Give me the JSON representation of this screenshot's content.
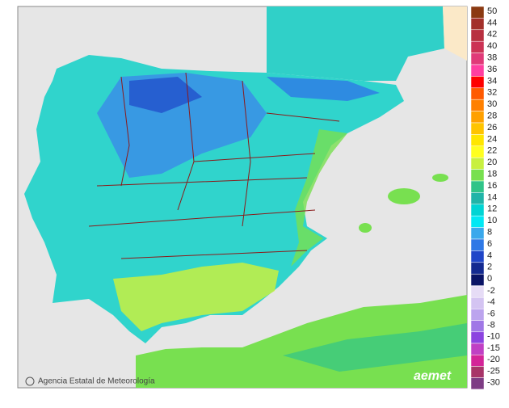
{
  "map": {
    "credit": "Agencia Estatal de Meteorología",
    "logo": "aemet"
  },
  "legend": {
    "positive": [
      {
        "label": "50",
        "color": "#8b3a12"
      },
      {
        "label": "44",
        "color": "#a3302a"
      },
      {
        "label": "42",
        "color": "#b83040"
      },
      {
        "label": "40",
        "color": "#cc3355"
      },
      {
        "label": "38",
        "color": "#e03a78"
      },
      {
        "label": "36",
        "color": "#ff3fa0"
      },
      {
        "label": "34",
        "color": "#ff0000"
      },
      {
        "label": "32",
        "color": "#ff5a00"
      },
      {
        "label": "30",
        "color": "#ff8000"
      },
      {
        "label": "28",
        "color": "#ffa000"
      },
      {
        "label": "26",
        "color": "#ffc400"
      },
      {
        "label": "24",
        "color": "#ffe600"
      },
      {
        "label": "22",
        "color": "#ffff20"
      },
      {
        "label": "20",
        "color": "#c8f040"
      },
      {
        "label": "18",
        "color": "#78e050"
      },
      {
        "label": "16",
        "color": "#30c488"
      },
      {
        "label": "14",
        "color": "#20b4a8"
      },
      {
        "label": "12",
        "color": "#00d4d4"
      },
      {
        "label": "10",
        "color": "#00e8f4"
      },
      {
        "label": "8",
        "color": "#3aa8ec"
      },
      {
        "label": "6",
        "color": "#2e78e6"
      },
      {
        "label": "4",
        "color": "#2046c8"
      },
      {
        "label": "2",
        "color": "#142a90"
      },
      {
        "label": "0",
        "color": "#0a1466"
      }
    ],
    "negative": [
      {
        "label": "-2",
        "color": "#e6dcf6"
      },
      {
        "label": "-4",
        "color": "#d4c4f2"
      },
      {
        "label": "-6",
        "color": "#bca4ee"
      },
      {
        "label": "-8",
        "color": "#a078e6"
      },
      {
        "label": "-10",
        "color": "#8c44e0"
      },
      {
        "label": "-15",
        "color": "#c040c4"
      },
      {
        "label": "-20",
        "color": "#d42498"
      },
      {
        "label": "-25",
        "color": "#a83468"
      },
      {
        "label": "-30",
        "color": "#7e3c84"
      }
    ]
  }
}
